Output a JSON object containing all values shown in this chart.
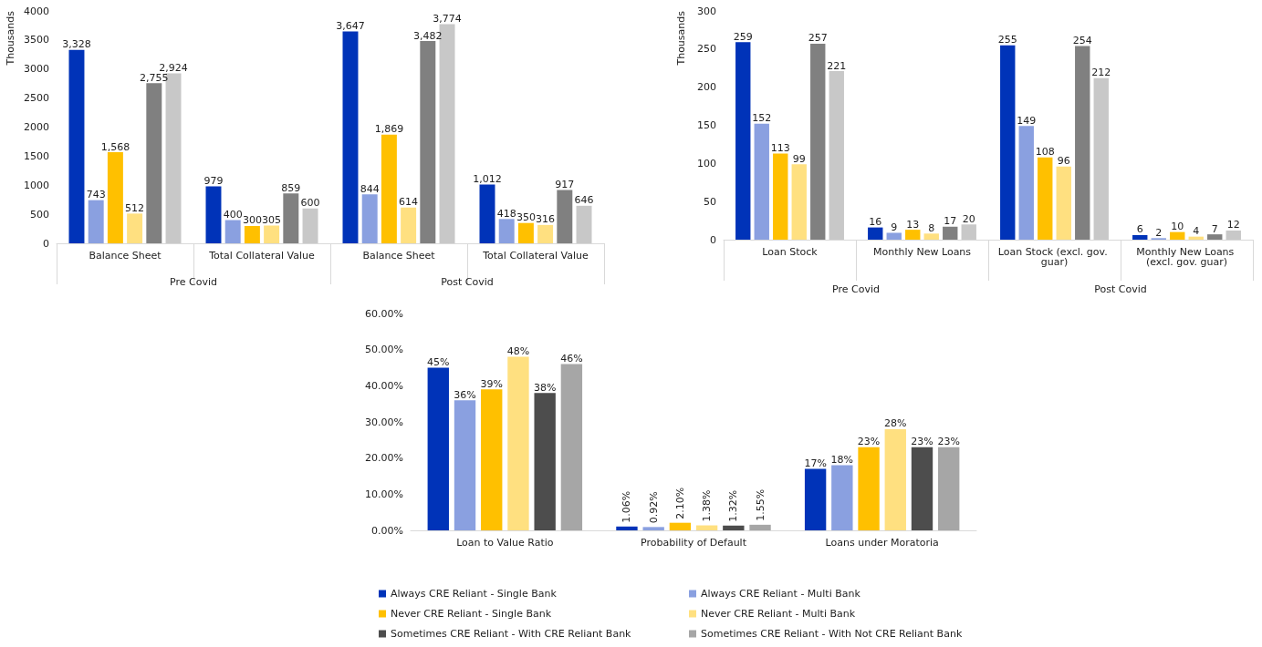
{
  "chart_data": [
    {
      "type": "bar",
      "ylabel": "Thousands",
      "categories": [
        "Balance Sheet",
        "Total Collateral Value",
        "Balance Sheet",
        "Total Collateral Value"
      ],
      "annotations": [
        "Pre Covid",
        "Post Covid"
      ],
      "ylim": [
        0,
        4000
      ],
      "yticks": [
        0,
        500,
        1000,
        1500,
        2000,
        2500,
        3000,
        3500,
        4000
      ],
      "grid": false,
      "legend": false,
      "series": [
        {
          "color": "#0033b8",
          "values": [
            3328,
            979,
            3647,
            1012
          ],
          "value_labels": [
            "3,328",
            "979",
            "3,647",
            "1,012"
          ]
        },
        {
          "color": "#8aa0e0",
          "values": [
            743,
            400,
            844,
            418
          ],
          "value_labels": [
            "743",
            "400",
            "844",
            "418"
          ]
        },
        {
          "color": "#ffc000",
          "values": [
            1568,
            300,
            1869,
            350
          ],
          "value_labels": [
            "1,568",
            "300",
            "1,869",
            "350"
          ]
        },
        {
          "color": "#ffe080",
          "values": [
            512,
            305,
            614,
            316
          ],
          "value_labels": [
            "512",
            "305",
            "614",
            "316"
          ]
        },
        {
          "color": "#808080",
          "values": [
            2755,
            859,
            3482,
            917
          ],
          "value_labels": [
            "2,755",
            "859",
            "3,482",
            "917"
          ]
        },
        {
          "color": "#c8c8c8",
          "values": [
            2924,
            600,
            3774,
            646
          ],
          "value_labels": [
            "2,924",
            "600",
            "3,774",
            "646"
          ]
        }
      ]
    },
    {
      "type": "bar",
      "ylabel": "Thousands",
      "categories": [
        "Loan Stock",
        "Monthly New Loans",
        "Loan Stock (excl. gov. guar)",
        "Monthly New Loans (excl. gov. guar)"
      ],
      "annotations": [
        "Pre Covid",
        "Post Covid"
      ],
      "ylim": [
        0,
        300
      ],
      "yticks": [
        0,
        50,
        100,
        150,
        200,
        250,
        300
      ],
      "grid": false,
      "legend": false,
      "series": [
        {
          "color": "#0033b8",
          "values": [
            259,
            16,
            255,
            6
          ],
          "value_labels": [
            "259",
            "16",
            "255",
            "6"
          ]
        },
        {
          "color": "#8aa0e0",
          "values": [
            152,
            9,
            149,
            2
          ],
          "value_labels": [
            "152",
            "9",
            "149",
            "2"
          ]
        },
        {
          "color": "#ffc000",
          "values": [
            113,
            13,
            108,
            10
          ],
          "value_labels": [
            "113",
            "13",
            "108",
            "10"
          ]
        },
        {
          "color": "#ffe080",
          "values": [
            99,
            8,
            96,
            4
          ],
          "value_labels": [
            "99",
            "8",
            "96",
            "4"
          ]
        },
        {
          "color": "#808080",
          "values": [
            257,
            17,
            254,
            7
          ],
          "value_labels": [
            "257",
            "17",
            "254",
            "7"
          ]
        },
        {
          "color": "#c8c8c8",
          "values": [
            221,
            20,
            212,
            12
          ],
          "value_labels": [
            "221",
            "20",
            "212",
            "12"
          ]
        }
      ]
    },
    {
      "type": "bar",
      "categories": [
        "Loan to Value Ratio",
        "Probability of Default",
        "Loans under Moratoria"
      ],
      "ylim": [
        0,
        60
      ],
      "yticks": [
        {
          "value": 0,
          "label": "0.00%"
        },
        {
          "value": 10,
          "label": "10.00%"
        },
        {
          "value": 20,
          "label": "20.00%"
        },
        {
          "value": 30,
          "label": "30.00%"
        },
        {
          "value": 40,
          "label": "40.00%"
        },
        {
          "value": 50,
          "label": "50.00%"
        },
        {
          "value": 60,
          "label": "60.00%"
        }
      ],
      "grid": false,
      "legend": "bottom",
      "series": [
        {
          "name": "Always CRE Reliant - Single Bank",
          "color": "#0033b8",
          "values": [
            45,
            1.06,
            17
          ],
          "value_labels": [
            "45%",
            "1.06%",
            "17%"
          ]
        },
        {
          "name": "Always CRE Reliant - Multi Bank",
          "color": "#8aa0e0",
          "values": [
            36,
            0.92,
            18
          ],
          "value_labels": [
            "36%",
            "0.92%",
            "18%"
          ]
        },
        {
          "name": "Never CRE Reliant - Single Bank",
          "color": "#ffc000",
          "values": [
            39,
            2.1,
            23
          ],
          "value_labels": [
            "39%",
            "2.10%",
            "23%"
          ]
        },
        {
          "name": "Never CRE Reliant - Multi Bank",
          "color": "#ffe080",
          "values": [
            48,
            1.38,
            28
          ],
          "value_labels": [
            "48%",
            "1.38%",
            "28%"
          ]
        },
        {
          "name": "Sometimes CRE Reliant - With CRE Reliant Bank",
          "color": "#4d4d4d",
          "values": [
            38,
            1.32,
            23
          ],
          "value_labels": [
            "38%",
            "1.32%",
            "23%"
          ]
        },
        {
          "name": "Sometimes CRE Reliant - With Not CRE Reliant Bank",
          "color": "#a6a6a6",
          "values": [
            46,
            1.55,
            23
          ],
          "value_labels": [
            "46%",
            "1.55%",
            "23%"
          ]
        }
      ]
    }
  ]
}
